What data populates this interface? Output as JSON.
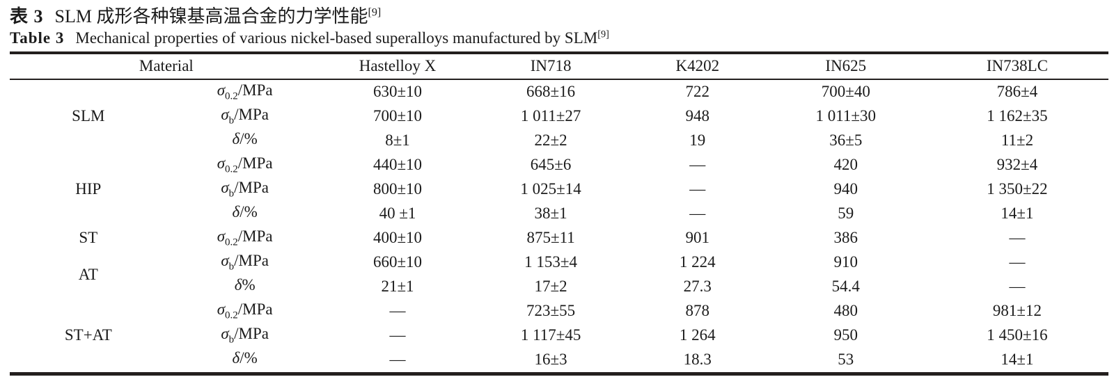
{
  "caption": {
    "zh": {
      "label": "表 3",
      "title": "SLM 成形各种镍基高温合金的力学性能",
      "ref": "[9]"
    },
    "en": {
      "label": "Table 3",
      "title": "Mechanical properties of various nickel-based superalloys manufactured by SLM",
      "ref": "[9]"
    }
  },
  "table": {
    "header": {
      "material": "Material",
      "columns": [
        "Hastelloy X",
        "IN718",
        "K4202",
        "IN625",
        "IN738LC"
      ]
    },
    "groups": [
      {
        "label": "SLM",
        "rows": [
          {
            "prop": {
              "sym": "σ",
              "sub": "0.2",
              "suf": "/MPa"
            },
            "values": [
              "630±10",
              "668±16",
              "722",
              "700±40",
              "786±4"
            ]
          },
          {
            "prop": {
              "sym": "σ",
              "sub": "b",
              "suf": "/MPa"
            },
            "values": [
              "700±10",
              "1 011±27",
              "948",
              "1 011±30",
              "1 162±35"
            ]
          },
          {
            "prop": {
              "sym": "δ",
              "sub": "",
              "suf": "/%"
            },
            "values": [
              "8±1",
              "22±2",
              "19",
              "36±5",
              "11±2"
            ]
          }
        ]
      },
      {
        "label": "HIP",
        "rows": [
          {
            "prop": {
              "sym": "σ",
              "sub": "0.2",
              "suf": "/MPa"
            },
            "values": [
              "440±10",
              "645±6",
              "—",
              "420",
              "932±4"
            ]
          },
          {
            "prop": {
              "sym": "σ",
              "sub": "b",
              "suf": "/MPa"
            },
            "values": [
              "800±10",
              "1 025±14",
              "—",
              "940",
              "1 350±22"
            ]
          },
          {
            "prop": {
              "sym": "δ",
              "sub": "",
              "suf": "/%"
            },
            "values": [
              "40 ±1",
              "38±1",
              "—",
              "59",
              "14±1"
            ]
          }
        ]
      },
      {
        "label": "ST",
        "rows": [
          {
            "prop": {
              "sym": "σ",
              "sub": "0.2",
              "suf": "/MPa"
            },
            "values": [
              "400±10",
              "875±11",
              "901",
              "386",
              "—"
            ]
          }
        ]
      },
      {
        "label": "AT",
        "rows": [
          {
            "prop": {
              "sym": "σ",
              "sub": "b",
              "suf": "/MPa"
            },
            "values": [
              "660±10",
              "1 153±4",
              "1 224",
              "910",
              "—"
            ]
          },
          {
            "prop": {
              "sym": "δ",
              "sub": "",
              "suf": "%"
            },
            "values": [
              "21±1",
              "17±2",
              "27.3",
              "54.4",
              "—"
            ]
          }
        ]
      },
      {
        "label": "ST+AT",
        "rows": [
          {
            "prop": {
              "sym": "σ",
              "sub": "0.2",
              "suf": "/MPa"
            },
            "values": [
              "—",
              "723±55",
              "878",
              "480",
              "981±12"
            ]
          },
          {
            "prop": {
              "sym": "σ",
              "sub": "b",
              "suf": "/MPa"
            },
            "values": [
              "—",
              "1 117±45",
              "1 264",
              "950",
              "1 450±16"
            ]
          },
          {
            "prop": {
              "sym": "δ",
              "sub": "",
              "suf": "/%"
            },
            "values": [
              "—",
              "16±3",
              "18.3",
              "53",
              "14±1"
            ]
          }
        ]
      }
    ]
  }
}
